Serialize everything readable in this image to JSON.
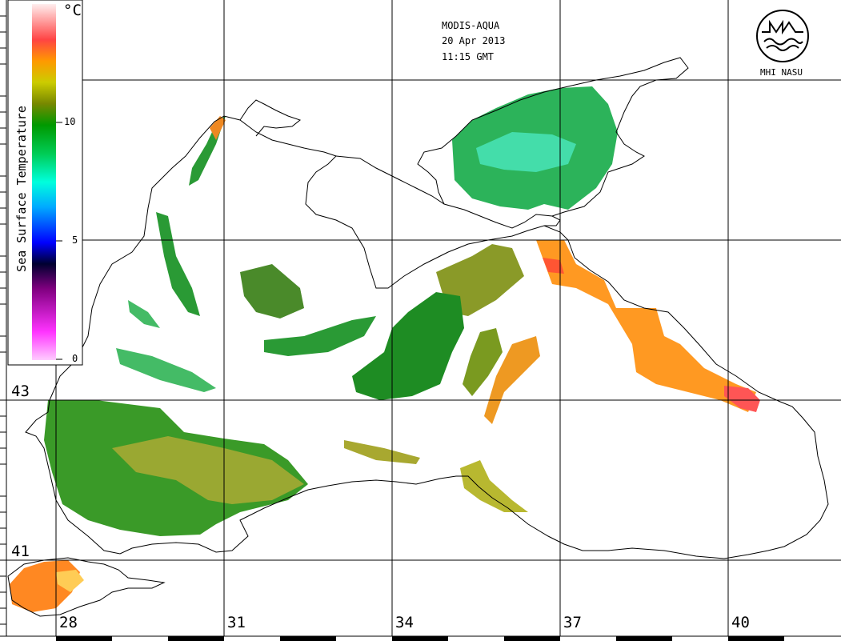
{
  "header": {
    "satellite": "MODIS-AQUA",
    "date": "20 Apr 2013",
    "time": "11:15 GMT"
  },
  "logo": {
    "text": "MHI NASU"
  },
  "colorbar": {
    "title": "Sea Surface Temperature",
    "unit": "°C",
    "ticks": [
      "0",
      "5",
      "10"
    ],
    "range": [
      0,
      15
    ],
    "colors": [
      "#ffaaff",
      "#ff33ff",
      "#800080",
      "#000020",
      "#0000ff",
      "#00aaff",
      "#00ffee",
      "#00dd66",
      "#009900",
      "#669900",
      "#bbbb00",
      "#ffd000",
      "#ff8800",
      "#ff3333",
      "#ffaaaa",
      "#ffeeee"
    ]
  },
  "map": {
    "lat_labels": [
      "43",
      "41"
    ],
    "lon_labels": [
      "28",
      "31",
      "34",
      "37",
      "40"
    ],
    "colors": {
      "land": "#ffffff",
      "coast": "#000000",
      "grid": "#000000",
      "sst_green": "#1e8c23",
      "sst_olive": "#8a8a14",
      "sst_yellow": "#c8c832",
      "sst_cyan": "#33dd99",
      "sst_orange": "#ff8c1a",
      "sst_red": "#ff4444"
    }
  }
}
